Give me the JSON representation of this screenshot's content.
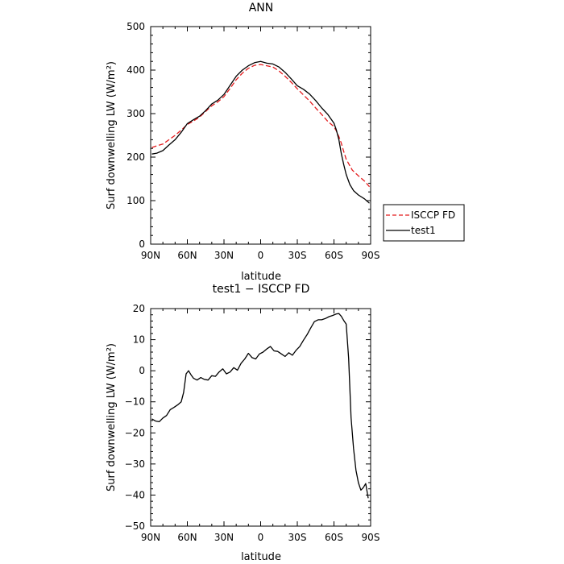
{
  "chart_data": [
    {
      "type": "line",
      "title": "ANN",
      "xlabel": "latitude",
      "ylabel": "Surf downwelling LW (W/m²)",
      "ylim": [
        0,
        500
      ],
      "xlim": [
        90,
        -90
      ],
      "x_ticks": [
        90,
        60,
        30,
        0,
        -30,
        -60,
        -90
      ],
      "x_tick_labels": [
        "90N",
        "60N",
        "30N",
        "0",
        "30S",
        "60S",
        "90S"
      ],
      "y_ticks": [
        0,
        100,
        200,
        300,
        400,
        500
      ],
      "y_tick_labels": [
        "0",
        "100",
        "200",
        "300",
        "400",
        "500"
      ],
      "legend": {
        "placement": "right",
        "entries": [
          "ISCCP FD",
          "test1"
        ]
      },
      "series": [
        {
          "name": "ISCCP FD",
          "color": "#e41a1c",
          "style": "dashed",
          "x": [
            89,
            85,
            80,
            75,
            70,
            65,
            60,
            55,
            50,
            45,
            40,
            35,
            30,
            25,
            20,
            15,
            10,
            5,
            0,
            -5,
            -10,
            -15,
            -20,
            -25,
            -30,
            -35,
            -40,
            -45,
            -50,
            -55,
            -60,
            -62,
            -64,
            -66,
            -68,
            -70,
            -75,
            -80,
            -85,
            -89
          ],
          "y": [
            222,
            226,
            230,
            240,
            250,
            262,
            275,
            283,
            292,
            305,
            318,
            327,
            339,
            358,
            378,
            393,
            404,
            411,
            413,
            410,
            407,
            398,
            386,
            372,
            357,
            343,
            329,
            313,
            298,
            282,
            270,
            260,
            247,
            232,
            213,
            195,
            170,
            157,
            145,
            132
          ]
        },
        {
          "name": "test1",
          "color": "#000000",
          "style": "solid",
          "x": [
            89,
            85,
            80,
            75,
            70,
            65,
            60,
            55,
            50,
            45,
            40,
            35,
            30,
            25,
            20,
            15,
            10,
            5,
            0,
            -5,
            -10,
            -15,
            -20,
            -25,
            -30,
            -35,
            -40,
            -45,
            -50,
            -55,
            -60,
            -62,
            -64,
            -66,
            -68,
            -70,
            -73,
            -76,
            -80,
            -85,
            -89
          ],
          "y": [
            207,
            209,
            215,
            228,
            240,
            257,
            277,
            286,
            294,
            307,
            322,
            331,
            344,
            365,
            386,
            400,
            410,
            417,
            420,
            416,
            414,
            407,
            395,
            380,
            364,
            356,
            345,
            330,
            313,
            298,
            278,
            262,
            240,
            208,
            183,
            160,
            137,
            123,
            113,
            104,
            94
          ]
        }
      ]
    },
    {
      "type": "line",
      "title": "test1 − ISCCP FD",
      "xlabel": "latitude",
      "ylabel": "Surf downwelling LW (W/m²)",
      "ylim": [
        -50,
        20
      ],
      "xlim": [
        90,
        -90
      ],
      "x_ticks": [
        90,
        60,
        30,
        0,
        -30,
        -60,
        -90
      ],
      "x_tick_labels": [
        "90N",
        "60N",
        "30N",
        "0",
        "30S",
        "60S",
        "90S"
      ],
      "y_ticks": [
        -50,
        -40,
        -30,
        -20,
        -10,
        0,
        10,
        20
      ],
      "y_tick_labels": [
        "−50",
        "−40",
        "−30",
        "−20",
        "−10",
        "0",
        "10",
        "20"
      ],
      "series": [
        {
          "color": "#000000",
          "style": "solid",
          "x": [
            89,
            86,
            83,
            80,
            77,
            74,
            71,
            68,
            65,
            63,
            61,
            59,
            57,
            55,
            52,
            49,
            46,
            43,
            40,
            37,
            34,
            31,
            28,
            25,
            22,
            19,
            16,
            13,
            10,
            7,
            4,
            1,
            -2,
            -5,
            -8,
            -11,
            -14,
            -17,
            -20,
            -23,
            -26,
            -29,
            -32,
            -35,
            -38,
            -41,
            -44,
            -47,
            -50,
            -53,
            -56,
            -59,
            -62,
            -64,
            -66,
            -68,
            -70,
            -72,
            -74,
            -76,
            -78,
            -80,
            -82,
            -84,
            -86,
            -88
          ],
          "y": [
            -15.5,
            -16.2,
            -16.4,
            -15.2,
            -14.4,
            -12.5,
            -11.8,
            -11,
            -10,
            -7,
            -1,
            0,
            -1.3,
            -2.4,
            -3,
            -2.2,
            -2.8,
            -3,
            -1.6,
            -1.8,
            -0.4,
            0.6,
            -1,
            -0.4,
            1,
            0.2,
            2.4,
            3.8,
            5.6,
            4.2,
            3.8,
            5.4,
            6,
            7,
            7.8,
            6.4,
            6.2,
            5.4,
            4.6,
            5.8,
            5,
            6.6,
            7.8,
            9.8,
            11.6,
            13.8,
            15.8,
            16.4,
            16.4,
            16.8,
            17.4,
            17.8,
            18.3,
            18.4,
            17.5,
            16.2,
            15,
            4,
            -15,
            -25,
            -32,
            -36,
            -38.4,
            -37.6,
            -36.3,
            -41
          ]
        }
      ]
    }
  ]
}
